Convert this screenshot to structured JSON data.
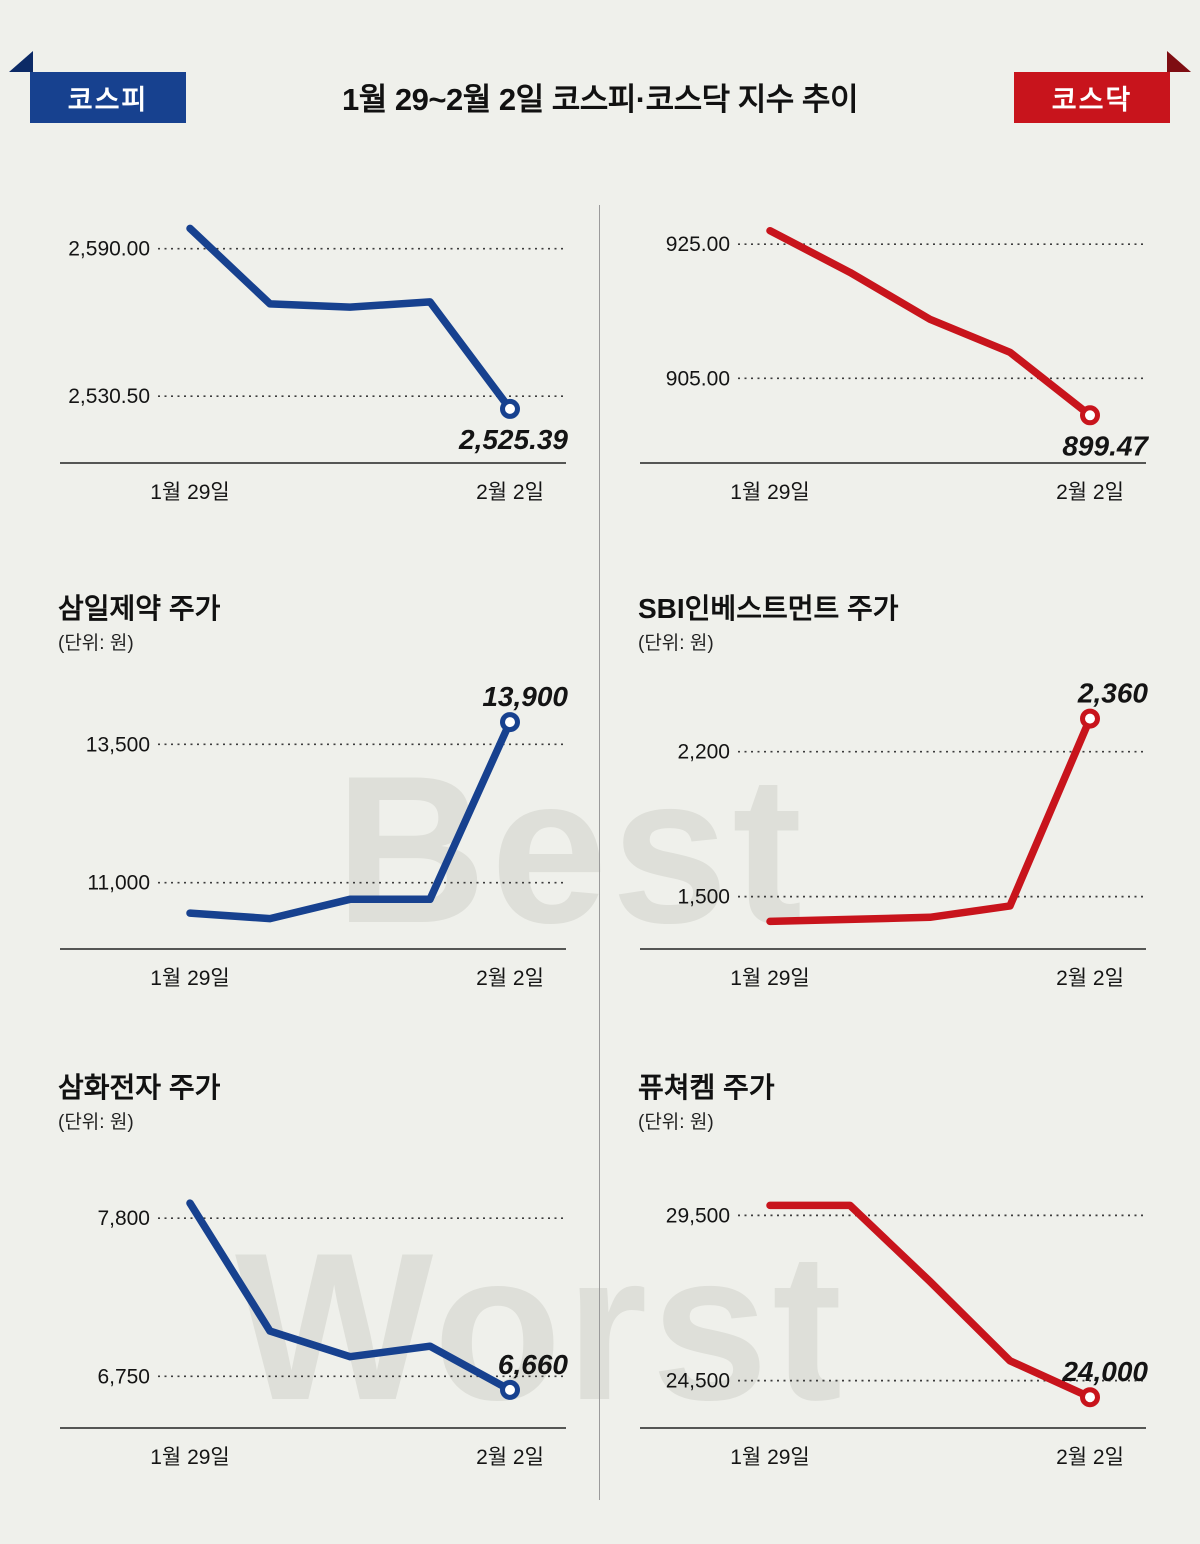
{
  "page": {
    "background": "#eff0eb"
  },
  "header": {
    "title": "1월 29~2월 2일  코스피·코스닥 지수 추이",
    "left_badge": {
      "label": "코스피",
      "color": "#17418f",
      "fold_color": "#0c2a66"
    },
    "right_badge": {
      "label": "코스닥",
      "color": "#c8141c",
      "fold_color": "#7e0d12"
    }
  },
  "watermarks": {
    "best": "Best",
    "worst": "Worst"
  },
  "chart_data": [
    {
      "id": "kospi-index",
      "type": "line",
      "title": "",
      "unit": "",
      "color": "#17418f",
      "x_tick_labels": [
        "1월 29일",
        "2월 2일"
      ],
      "values": [
        2598.19,
        2567.74,
        2566.46,
        2568.54,
        2525.39
      ],
      "ylim": [
        2508,
        2604
      ],
      "gridlines": [
        {
          "label": "2,590.00",
          "value": 2590.0
        },
        {
          "label": "2,530.50",
          "value": 2530.5
        }
      ],
      "end_label": "2,525.39",
      "end_label_position": "below",
      "grid": "dotted",
      "legend": "none"
    },
    {
      "id": "kosdaq-index",
      "type": "line",
      "title": "",
      "unit": "",
      "color": "#c8141c",
      "x_tick_labels": [
        "1월 29일",
        "2월 2일"
      ],
      "values": [
        927.01,
        920.79,
        913.8,
        908.87,
        899.47
      ],
      "ylim": [
        894,
        929.5
      ],
      "gridlines": [
        {
          "label": "925.00",
          "value": 925.0
        },
        {
          "label": "905.00",
          "value": 905.0
        }
      ],
      "end_label": "899.47",
      "end_label_position": "below",
      "grid": "dotted",
      "legend": "none"
    },
    {
      "id": "samil-pharm-price",
      "type": "line",
      "title": "삼일제약 주가",
      "unit": "(단위: 원)",
      "color": "#17418f",
      "x_tick_labels": [
        "1월 29일",
        "2월 2일"
      ],
      "values": [
        10450,
        10350,
        10700,
        10700,
        13900
      ],
      "ylim": [
        10000,
        14300
      ],
      "gridlines": [
        {
          "label": "13,500",
          "value": 13500
        },
        {
          "label": "11,000",
          "value": 11000
        }
      ],
      "end_label": "13,900",
      "end_label_position": "above",
      "grid": "dotted",
      "legend": "none"
    },
    {
      "id": "sbi-investment-price",
      "type": "line",
      "title": "SBI인베스트먼트 주가",
      "unit": "(단위: 원)",
      "color": "#c8141c",
      "x_tick_labels": [
        "1월 29일",
        "2월 2일"
      ],
      "values": [
        1380,
        1390,
        1400,
        1455,
        2360
      ],
      "ylim": [
        1300,
        2450
      ],
      "gridlines": [
        {
          "label": "2,200",
          "value": 2200
        },
        {
          "label": "1,500",
          "value": 1500
        }
      ],
      "end_label": "2,360",
      "end_label_position": "above",
      "grid": "dotted",
      "legend": "none"
    },
    {
      "id": "samwha-electronics-price",
      "type": "line",
      "title": "삼화전자 주가",
      "unit": "(단위: 원)",
      "color": "#17418f",
      "x_tick_labels": [
        "1월 29일",
        "2월 2일"
      ],
      "values": [
        7900,
        7050,
        6880,
        6950,
        6660
      ],
      "ylim": [
        6480,
        8060
      ],
      "gridlines": [
        {
          "label": "7,800",
          "value": 7800
        },
        {
          "label": "6,750",
          "value": 6750
        }
      ],
      "end_label": "6,660",
      "end_label_position": "above",
      "grid": "dotted",
      "legend": "none"
    },
    {
      "id": "futurechem-price",
      "type": "line",
      "title": "퓨쳐켐 주가",
      "unit": "(단위: 원)",
      "color": "#c8141c",
      "x_tick_labels": [
        "1월 29일",
        "2월 2일"
      ],
      "values": [
        29800,
        29800,
        27500,
        25100,
        24000
      ],
      "ylim": [
        23400,
        30600
      ],
      "gridlines": [
        {
          "label": "29,500",
          "value": 29500
        },
        {
          "label": "24,500",
          "value": 24500
        }
      ],
      "end_label": "24,000",
      "end_label_position": "above",
      "grid": "dotted",
      "legend": "none"
    }
  ]
}
